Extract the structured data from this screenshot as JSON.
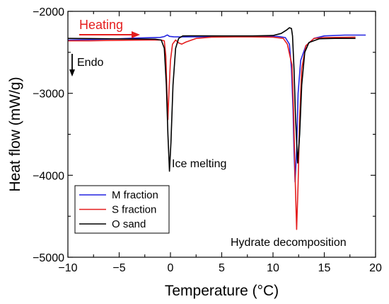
{
  "chart_data": {
    "type": "line",
    "xlabel": "Temperature (°C)",
    "ylabel": "Heat flow (mW/g)",
    "xlim": [
      -10,
      20
    ],
    "ylim": [
      -5000,
      -2000
    ],
    "xticks": [
      -10,
      -5,
      0,
      5,
      10,
      15,
      20
    ],
    "yticks": [
      -2000,
      -3000,
      -4000,
      -5000
    ],
    "ytick_labels": [
      "−2000",
      "−3000",
      "−4000",
      "−5000"
    ],
    "xtick_labels": [
      "−10",
      "−5",
      "0",
      "5",
      "10",
      "15",
      "20"
    ],
    "legend_position": "bottom-left",
    "annotations": {
      "heating": "Heating",
      "endo": "Endo",
      "ice_melting": "Ice melting",
      "hydrate": "Hydrate decomposition"
    },
    "colors": {
      "heating_arrow": "#e41e1e",
      "endo_arrow": "#000000"
    },
    "series": [
      {
        "name": "M fraction",
        "color": "#2323e0",
        "points": [
          [
            -10,
            -2350
          ],
          [
            -8,
            -2345
          ],
          [
            -5,
            -2335
          ],
          [
            -3,
            -2325
          ],
          [
            -1,
            -2318
          ],
          [
            -0.6,
            -2308
          ],
          [
            -0.3,
            -2288
          ],
          [
            -0.1,
            -2305
          ],
          [
            0.3,
            -2310
          ],
          [
            1,
            -2312
          ],
          [
            3,
            -2310
          ],
          [
            5,
            -2308
          ],
          [
            7,
            -2306
          ],
          [
            9,
            -2304
          ],
          [
            10.5,
            -2306
          ],
          [
            11.2,
            -2320
          ],
          [
            11.6,
            -2400
          ],
          [
            11.8,
            -2700
          ],
          [
            11.95,
            -3200
          ],
          [
            12.05,
            -3700
          ],
          [
            12.15,
            -4080
          ],
          [
            12.3,
            -3700
          ],
          [
            12.45,
            -3000
          ],
          [
            12.7,
            -2600
          ],
          [
            13.2,
            -2420
          ],
          [
            14,
            -2330
          ],
          [
            15,
            -2300
          ],
          [
            17,
            -2290
          ],
          [
            19,
            -2290
          ]
        ]
      },
      {
        "name": "S fraction",
        "color": "#e41e1e",
        "points": [
          [
            -10,
            -2360
          ],
          [
            -8,
            -2360
          ],
          [
            -6,
            -2355
          ],
          [
            -4,
            -2352
          ],
          [
            -2,
            -2350
          ],
          [
            -1,
            -2348
          ],
          [
            -0.6,
            -2360
          ],
          [
            -0.45,
            -2550
          ],
          [
            -0.35,
            -2950
          ],
          [
            -0.25,
            -3320
          ],
          [
            -0.15,
            -3000
          ],
          [
            0,
            -2600
          ],
          [
            0.2,
            -2400
          ],
          [
            0.5,
            -2350
          ],
          [
            0.8,
            -2385
          ],
          [
            1.1,
            -2400
          ],
          [
            1.5,
            -2375
          ],
          [
            2.5,
            -2330
          ],
          [
            4,
            -2315
          ],
          [
            7,
            -2310
          ],
          [
            10,
            -2315
          ],
          [
            11,
            -2330
          ],
          [
            11.4,
            -2400
          ],
          [
            11.7,
            -2570
          ],
          [
            11.85,
            -2650
          ],
          [
            12,
            -3200
          ],
          [
            12.15,
            -4000
          ],
          [
            12.3,
            -4660
          ],
          [
            12.45,
            -4100
          ],
          [
            12.6,
            -3300
          ],
          [
            12.8,
            -2700
          ],
          [
            13.2,
            -2420
          ],
          [
            14,
            -2330
          ],
          [
            15,
            -2320
          ],
          [
            18,
            -2315
          ]
        ]
      },
      {
        "name": "O sand",
        "color": "#000000",
        "points": [
          [
            -10,
            -2330
          ],
          [
            -8,
            -2332
          ],
          [
            -5,
            -2336
          ],
          [
            -3,
            -2338
          ],
          [
            -1.5,
            -2340
          ],
          [
            -0.9,
            -2350
          ],
          [
            -0.6,
            -2450
          ],
          [
            -0.4,
            -2900
          ],
          [
            -0.25,
            -3500
          ],
          [
            -0.1,
            -3950
          ],
          [
            0.05,
            -3600
          ],
          [
            0.25,
            -2900
          ],
          [
            0.5,
            -2450
          ],
          [
            0.8,
            -2330
          ],
          [
            1.2,
            -2300
          ],
          [
            2,
            -2298
          ],
          [
            5,
            -2300
          ],
          [
            8,
            -2300
          ],
          [
            10,
            -2295
          ],
          [
            10.8,
            -2270
          ],
          [
            11.3,
            -2230
          ],
          [
            11.6,
            -2200
          ],
          [
            11.8,
            -2210
          ],
          [
            11.9,
            -2300
          ],
          [
            12.05,
            -2700
          ],
          [
            12.2,
            -3300
          ],
          [
            12.4,
            -3850
          ],
          [
            12.6,
            -3500
          ],
          [
            12.8,
            -2900
          ],
          [
            13.1,
            -2500
          ],
          [
            13.5,
            -2380
          ],
          [
            14.5,
            -2335
          ],
          [
            16,
            -2330
          ],
          [
            18,
            -2330
          ]
        ]
      }
    ]
  }
}
